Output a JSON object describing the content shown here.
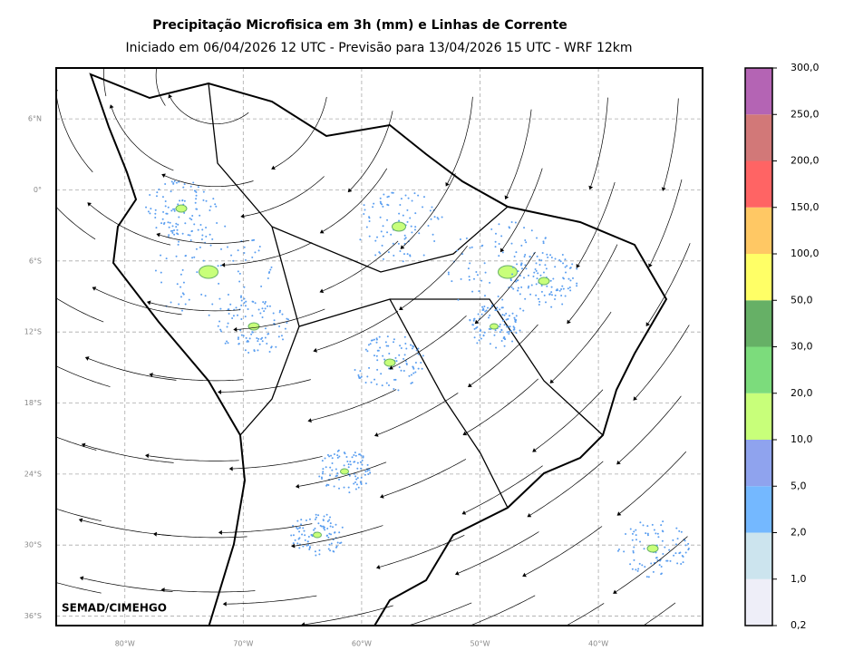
{
  "map": {
    "title": "Precipitação Microfisica em 3h (mm) e Linhas de Corrente",
    "subtitle": "Iniciado em 06/04/2026 12 UTC - Previsão para 13/04/2026 15 UTC - WRF 12km",
    "credit": "SEMAD/CIMEHGO",
    "lonlim": [
      -85.8,
      -31.2
    ],
    "latlim": [
      -36.8,
      10.3
    ],
    "lat_ticks": [
      {
        "value": 6,
        "label": "6°N"
      },
      {
        "value": 0,
        "label": "0°"
      },
      {
        "value": -6,
        "label": "6°S"
      },
      {
        "value": -12,
        "label": "12°S"
      },
      {
        "value": -18,
        "label": "18°S"
      },
      {
        "value": -24,
        "label": "24°S"
      },
      {
        "value": -30,
        "label": "30°S"
      },
      {
        "value": -36,
        "label": "36°S"
      }
    ],
    "lon_ticks": [
      {
        "value": -80,
        "label": "80°W"
      },
      {
        "value": -70,
        "label": "70°W"
      },
      {
        "value": -60,
        "label": "60°W"
      },
      {
        "value": -50,
        "label": "50°W"
      },
      {
        "value": -40,
        "label": "40°W"
      }
    ],
    "colorbar": {
      "ticks": [
        {
          "value": 0.2,
          "label": "0,2"
        },
        {
          "value": 1,
          "label": "1,0"
        },
        {
          "value": 2,
          "label": "2,0"
        },
        {
          "value": 5,
          "label": "5,0"
        },
        {
          "value": 10,
          "label": "10,0"
        },
        {
          "value": 20,
          "label": "20,0"
        },
        {
          "value": 30,
          "label": "30,0"
        },
        {
          "value": 50,
          "label": "50,0"
        },
        {
          "value": 100,
          "label": "100,0"
        },
        {
          "value": 150,
          "label": "150,0"
        },
        {
          "value": 200,
          "label": "200,0"
        },
        {
          "value": 250,
          "label": "250,0"
        },
        {
          "value": 300,
          "label": "300,0"
        }
      ],
      "colors": [
        "#eeeef8",
        "#cce4ee",
        "#74b8ff",
        "#8fa3ee",
        "#c8ff7a",
        "#7cdc7c",
        "#66b066",
        "#ffff66",
        "#ffc864",
        "#ff6464",
        "#d27878",
        "#b464b4"
      ]
    }
  }
}
